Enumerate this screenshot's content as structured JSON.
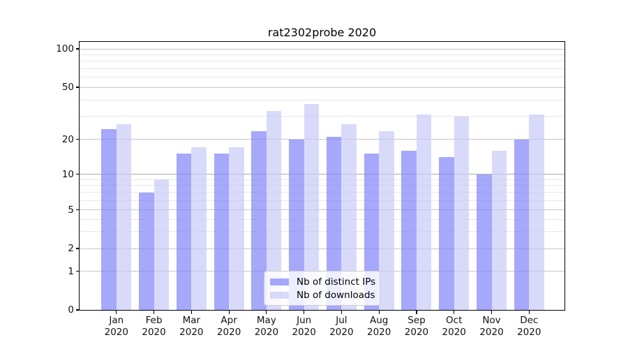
{
  "title": "rat2302probe 2020",
  "legend": {
    "position": "lower-center-inside-plot",
    "items": [
      {
        "label": "Nb of distinct IPs",
        "series": "ips"
      },
      {
        "label": "Nb of downloads",
        "series": "downloads"
      }
    ]
  },
  "colors": {
    "ips_bar": "rgba(132,134,248,0.72)",
    "downloads_bar": "rgba(203,204,248,0.72)",
    "ips_bar_solid": "#a7a8fa",
    "downloads_bar_solid": "#dadbfa",
    "grid_major": "#c6c6c6",
    "grid_major_emphasis": "#ababab",
    "grid_minor": "#e7e7e7",
    "axis_line": "#000000",
    "background": "#ffffff"
  },
  "chart_data": {
    "type": "bar",
    "title": "rat2302probe 2020",
    "categories": [
      "Jan",
      "Feb",
      "Mar",
      "Apr",
      "May",
      "Jun",
      "Jul",
      "Aug",
      "Sep",
      "Oct",
      "Nov",
      "Dec"
    ],
    "category_year": "2020",
    "series": [
      {
        "name": "Nb of distinct IPs",
        "values": [
          24,
          7,
          15,
          15,
          23,
          20,
          21,
          15,
          16,
          14,
          10,
          20
        ]
      },
      {
        "name": "Nb of downloads",
        "values": [
          26,
          9,
          17,
          17,
          33,
          37,
          26,
          23,
          31,
          30,
          16,
          31
        ]
      }
    ],
    "xlabel": "",
    "ylabel": "",
    "yscale": "symlog-like",
    "ylim": [
      0,
      115
    ],
    "y_major_ticks": [
      0,
      1,
      2,
      5,
      10,
      20,
      50,
      100
    ],
    "y_minor_gridlines": [
      3,
      4,
      6,
      7,
      8,
      9,
      30,
      40,
      60,
      70,
      80,
      90
    ],
    "grid": "both",
    "legend_entries": [
      "Nb of distinct IPs",
      "Nb of downloads"
    ]
  }
}
